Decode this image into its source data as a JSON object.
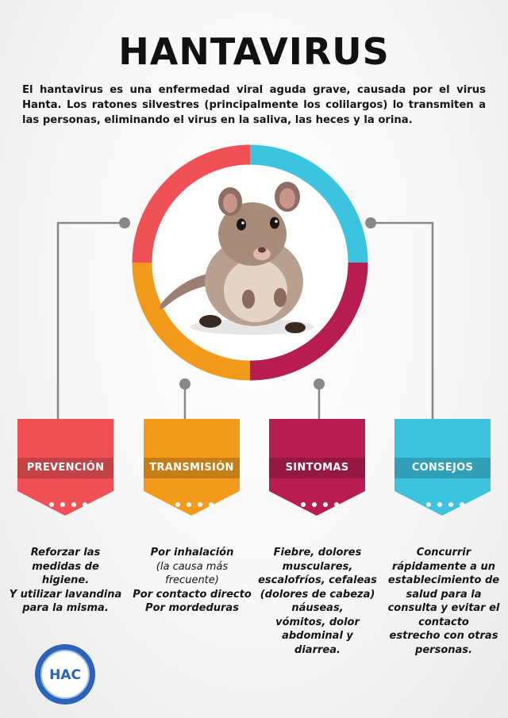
{
  "title": "HANTAVIRUS",
  "intro": "El hantavirus es una enfermedad viral aguda grave, causada por el virus Hanta. Los ratones silvestres (principalmente los colilargos) lo transmiten a las personas, eliminando el virus en la saliva, las heces y la orina.",
  "colors": {
    "red": "#f05156",
    "orange": "#f39a1d",
    "crimson": "#b71e4f",
    "cyan": "#3cc3e0",
    "connector": "#888888"
  },
  "cards": [
    {
      "label": "PREVENCIÓN",
      "color": "#f05156",
      "lines": [
        "Reforzar las",
        "medidas de",
        "higiene.",
        "Y utilizar lavandina",
        "para la misma."
      ]
    },
    {
      "label": "TRANSMISIÓN",
      "color": "#f39a1d",
      "lines": [
        "Por inhalación",
        "(la causa más",
        "frecuente)",
        "Por contacto directo",
        "Por mordeduras"
      ]
    },
    {
      "label": "SINTOMAS",
      "color": "#b71e4f",
      "lines": [
        "Fiebre, dolores",
        "musculares,",
        "escalofríos, cefaleas",
        "(dolores de cabeza)",
        "náuseas,",
        "vómitos, dolor",
        "abdominal y",
        "diarrea."
      ]
    },
    {
      "label": "CONSEJOS",
      "color": "#3cc3e0",
      "lines": [
        "Concurrir",
        "rápidamente a un",
        "establecimiento de",
        "salud para la",
        "consulta y evitar el",
        "contacto",
        "estrecho con otras",
        "personas."
      ]
    }
  ],
  "logo_text": "HAC"
}
